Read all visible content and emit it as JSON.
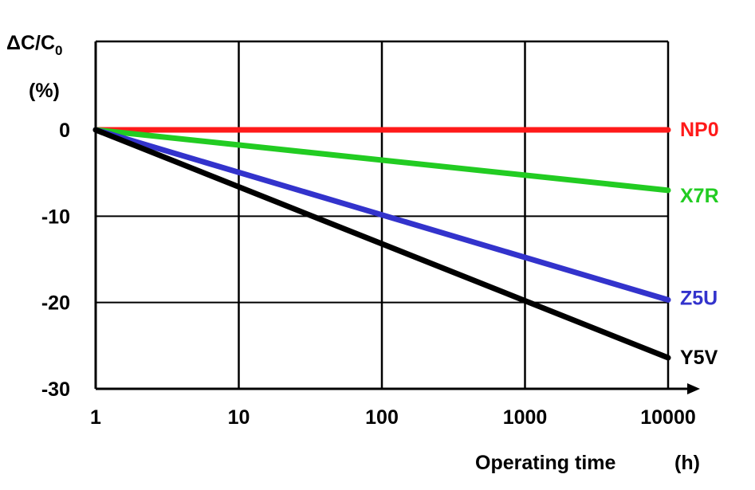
{
  "chart_data": {
    "type": "line",
    "title": "",
    "ylabel_main": "ΔC/C",
    "ylabel_sub": "0",
    "ylabel_unit": "(%)",
    "xlabel": "Operating time",
    "xlabel_unit": "(h)",
    "x_scale": "log",
    "xlim": [
      1,
      10000
    ],
    "ylim": [
      -30,
      10
    ],
    "x_ticks": [
      1,
      10,
      100,
      1000,
      10000
    ],
    "x_tick_labels": [
      "1",
      "10",
      "100",
      "1000",
      "10000"
    ],
    "y_ticks": [
      0,
      -10,
      -20,
      -30
    ],
    "y_tick_labels": [
      "0",
      "-10",
      "-20",
      "-30"
    ],
    "grid": true,
    "legend": "inline labels at right end of each line",
    "x": [
      1,
      10000
    ],
    "series": [
      {
        "name": "NP0",
        "values": [
          0,
          0
        ],
        "color": "#ff1a1a"
      },
      {
        "name": "X7R",
        "values": [
          0,
          -7
        ],
        "color": "#22cc22"
      },
      {
        "name": "Z5U",
        "values": [
          0,
          -19.7
        ],
        "color": "#3333cc"
      },
      {
        "name": "Y5V",
        "values": [
          0,
          -26.4
        ],
        "color": "#000000"
      }
    ]
  }
}
